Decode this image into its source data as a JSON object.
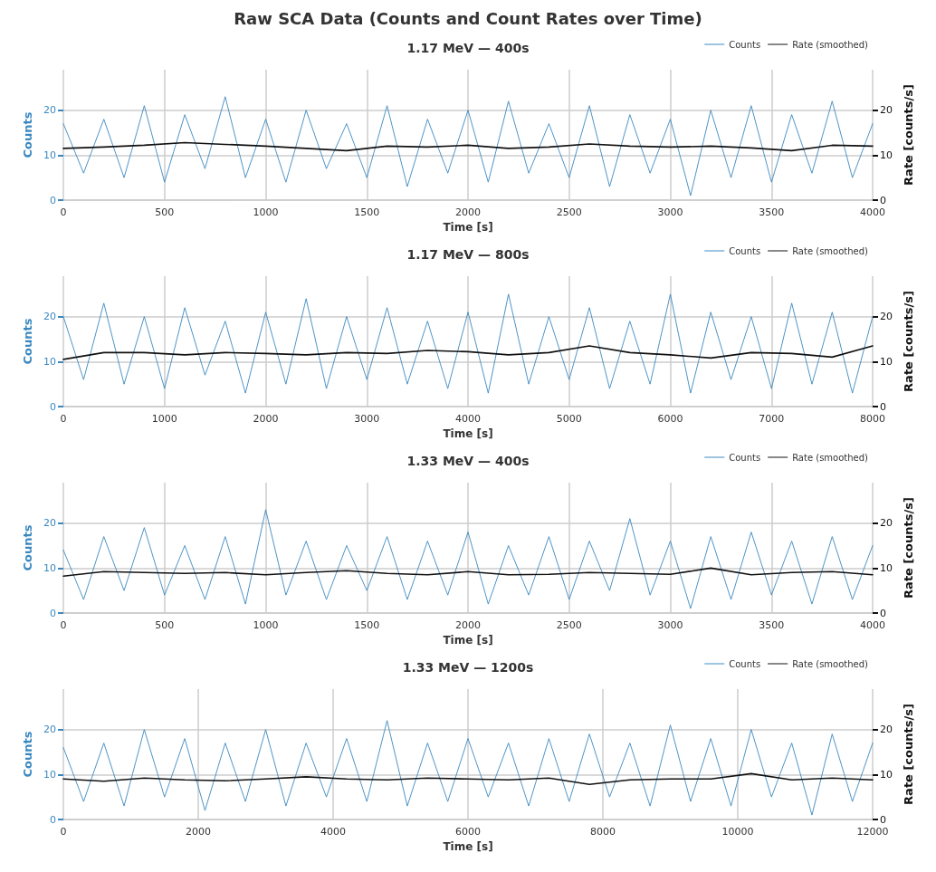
{
  "chart_data": [
    {
      "type": "line",
      "title": "1.17 MeV — 400s",
      "annotations": [
        "Raw SCA Data (Counts and Count Rates over Time)"
      ],
      "xlabel": "Time [s]",
      "ylabel": "Counts",
      "y2label": "Rate [counts/s]",
      "xlim": [
        0,
        4000
      ],
      "xticks": [
        0,
        500,
        1000,
        1500,
        2000,
        2500,
        3000,
        3500,
        4000
      ],
      "ylim": [
        0,
        29
      ],
      "yticks": [
        0,
        10,
        20
      ],
      "y2lim": [
        0,
        29
      ],
      "y2ticks": [
        0,
        10,
        20
      ],
      "grid": true,
      "legend": "top right",
      "marker": "none",
      "line_style": "solid",
      "series": [
        {
          "name": "Counts",
          "color": "#3a88c0",
          "x": [
            0,
            100,
            200,
            300,
            400,
            500,
            600,
            700,
            800,
            900,
            1000,
            1100,
            1200,
            1300,
            1400,
            1500,
            1600,
            1700,
            1800,
            1900,
            2000,
            2100,
            2200,
            2300,
            2400,
            2500,
            2600,
            2700,
            2800,
            2900,
            3000,
            3100,
            3200,
            3300,
            3400,
            3500,
            3600,
            3700,
            3800,
            3900,
            4000
          ],
          "values": [
            17,
            6,
            18,
            5,
            21,
            4,
            19,
            7,
            23,
            5,
            18,
            4,
            20,
            7,
            17,
            5,
            21,
            3,
            18,
            6,
            20,
            4,
            22,
            6,
            17,
            5,
            21,
            3,
            19,
            6,
            18,
            1,
            20,
            5,
            21,
            4,
            19,
            6,
            22,
            5,
            17
          ]
        },
        {
          "name": "Rate (smoothed)",
          "color": "#111111",
          "axis": "y2",
          "x": [
            0,
            200,
            400,
            600,
            800,
            1000,
            1200,
            1400,
            1600,
            1800,
            2000,
            2200,
            2400,
            2600,
            2800,
            3000,
            3200,
            3400,
            3600,
            3800,
            4000
          ],
          "values": [
            11.5,
            11.8,
            12.2,
            12.8,
            12.4,
            12.0,
            11.5,
            11.0,
            12.0,
            11.8,
            12.2,
            11.5,
            11.8,
            12.5,
            12.0,
            11.8,
            12.0,
            11.6,
            11.0,
            12.2,
            12.0
          ]
        }
      ]
    },
    {
      "type": "line",
      "title": "1.17 MeV — 800s",
      "xlabel": "Time [s]",
      "ylabel": "Counts",
      "y2label": "Rate [counts/s]",
      "xlim": [
        0,
        8000
      ],
      "xticks": [
        0,
        1000,
        2000,
        3000,
        4000,
        5000,
        6000,
        7000,
        8000
      ],
      "ylim": [
        0,
        29
      ],
      "yticks": [
        0,
        10,
        20
      ],
      "y2lim": [
        0,
        29
      ],
      "y2ticks": [
        0,
        10,
        20
      ],
      "grid": true,
      "legend": "top right",
      "marker": "none",
      "line_style": "solid",
      "series": [
        {
          "name": "Counts",
          "color": "#3a88c0",
          "x": [
            0,
            200,
            400,
            600,
            800,
            1000,
            1200,
            1400,
            1600,
            1800,
            2000,
            2200,
            2400,
            2600,
            2800,
            3000,
            3200,
            3400,
            3600,
            3800,
            4000,
            4200,
            4400,
            4600,
            4800,
            5000,
            5200,
            5400,
            5600,
            5800,
            6000,
            6200,
            6400,
            6600,
            6800,
            7000,
            7200,
            7400,
            7600,
            7800,
            8000
          ],
          "values": [
            20,
            6,
            23,
            5,
            20,
            4,
            22,
            7,
            19,
            3,
            21,
            5,
            24,
            4,
            20,
            6,
            22,
            5,
            19,
            4,
            21,
            3,
            25,
            5,
            20,
            6,
            22,
            4,
            19,
            5,
            25,
            3,
            21,
            6,
            20,
            4,
            23,
            5,
            21,
            3,
            20
          ]
        },
        {
          "name": "Rate (smoothed)",
          "color": "#111111",
          "axis": "y2",
          "x": [
            0,
            400,
            800,
            1200,
            1600,
            2000,
            2400,
            2800,
            3200,
            3600,
            4000,
            4400,
            4800,
            5200,
            5600,
            6000,
            6400,
            6800,
            7200,
            7600,
            8000
          ],
          "values": [
            10.5,
            12.0,
            12.0,
            11.5,
            12.0,
            11.8,
            11.5,
            12.0,
            11.8,
            12.5,
            12.2,
            11.5,
            12.0,
            13.5,
            12.0,
            11.5,
            10.8,
            12.0,
            11.8,
            11.0,
            13.5
          ]
        }
      ]
    },
    {
      "type": "line",
      "title": "1.33 MeV — 400s",
      "xlabel": "Time [s]",
      "ylabel": "Counts",
      "y2label": "Rate [counts/s]",
      "xlim": [
        0,
        4000
      ],
      "xticks": [
        0,
        500,
        1000,
        1500,
        2000,
        2500,
        3000,
        3500,
        4000
      ],
      "ylim": [
        0,
        29
      ],
      "yticks": [
        0,
        10,
        20
      ],
      "y2lim": [
        0,
        29
      ],
      "y2ticks": [
        0,
        10,
        20
      ],
      "grid": true,
      "legend": "top right",
      "marker": "none",
      "line_style": "solid",
      "series": [
        {
          "name": "Counts",
          "color": "#3a88c0",
          "x": [
            0,
            100,
            200,
            300,
            400,
            500,
            600,
            700,
            800,
            900,
            1000,
            1100,
            1200,
            1300,
            1400,
            1500,
            1600,
            1700,
            1800,
            1900,
            2000,
            2100,
            2200,
            2300,
            2400,
            2500,
            2600,
            2700,
            2800,
            2900,
            3000,
            3100,
            3200,
            3300,
            3400,
            3500,
            3600,
            3700,
            3800,
            3900,
            4000
          ],
          "values": [
            14,
            3,
            17,
            5,
            19,
            4,
            15,
            3,
            17,
            2,
            23,
            4,
            16,
            3,
            15,
            5,
            17,
            3,
            16,
            4,
            18,
            2,
            15,
            4,
            17,
            3,
            16,
            5,
            21,
            4,
            16,
            1,
            17,
            3,
            18,
            4,
            16,
            2,
            17,
            3,
            15
          ]
        },
        {
          "name": "Rate (smoothed)",
          "color": "#111111",
          "axis": "y2",
          "x": [
            0,
            200,
            400,
            600,
            800,
            1000,
            1200,
            1400,
            1600,
            1800,
            2000,
            2200,
            2400,
            2600,
            2800,
            3000,
            3200,
            3400,
            3600,
            3800,
            4000
          ],
          "values": [
            8.2,
            9.2,
            9.0,
            8.8,
            9.0,
            8.5,
            9.0,
            9.4,
            8.8,
            8.5,
            9.2,
            8.5,
            8.6,
            9.0,
            8.8,
            8.6,
            10.0,
            8.5,
            9.0,
            9.2,
            8.5
          ]
        }
      ]
    },
    {
      "type": "line",
      "title": "1.33 MeV — 1200s",
      "xlabel": "Time [s]",
      "ylabel": "Counts",
      "y2label": "Rate [counts/s]",
      "xlim": [
        0,
        12000
      ],
      "xticks": [
        0,
        2000,
        4000,
        6000,
        8000,
        10000,
        12000
      ],
      "ylim": [
        0,
        29
      ],
      "yticks": [
        0,
        10,
        20
      ],
      "y2lim": [
        0,
        29
      ],
      "y2ticks": [
        0,
        10,
        20
      ],
      "grid": true,
      "legend": "top right",
      "marker": "none",
      "line_style": "solid",
      "series": [
        {
          "name": "Counts",
          "color": "#3a88c0",
          "x": [
            0,
            300,
            600,
            900,
            1200,
            1500,
            1800,
            2100,
            2400,
            2700,
            3000,
            3300,
            3600,
            3900,
            4200,
            4500,
            4800,
            5100,
            5400,
            5700,
            6000,
            6300,
            6600,
            6900,
            7200,
            7500,
            7800,
            8100,
            8400,
            8700,
            9000,
            9300,
            9600,
            9900,
            10200,
            10500,
            10800,
            11100,
            11400,
            11700,
            12000
          ],
          "values": [
            16,
            4,
            17,
            3,
            20,
            5,
            18,
            2,
            17,
            4,
            20,
            3,
            17,
            5,
            18,
            4,
            22,
            3,
            17,
            4,
            18,
            5,
            17,
            3,
            18,
            4,
            19,
            5,
            17,
            3,
            21,
            4,
            18,
            3,
            20,
            5,
            17,
            1,
            19,
            4,
            17
          ]
        },
        {
          "name": "Rate (smoothed)",
          "color": "#111111",
          "axis": "y2",
          "x": [
            0,
            600,
            1200,
            1800,
            2400,
            3000,
            3600,
            4200,
            4800,
            5400,
            6000,
            6600,
            7200,
            7800,
            8400,
            9000,
            9600,
            10200,
            10800,
            11400,
            12000
          ],
          "values": [
            9.0,
            8.5,
            9.2,
            8.8,
            8.6,
            9.0,
            9.5,
            9.0,
            8.8,
            9.2,
            9.0,
            8.8,
            9.2,
            7.8,
            8.8,
            9.0,
            9.0,
            10.2,
            8.8,
            9.2,
            8.8
          ]
        }
      ]
    }
  ]
}
